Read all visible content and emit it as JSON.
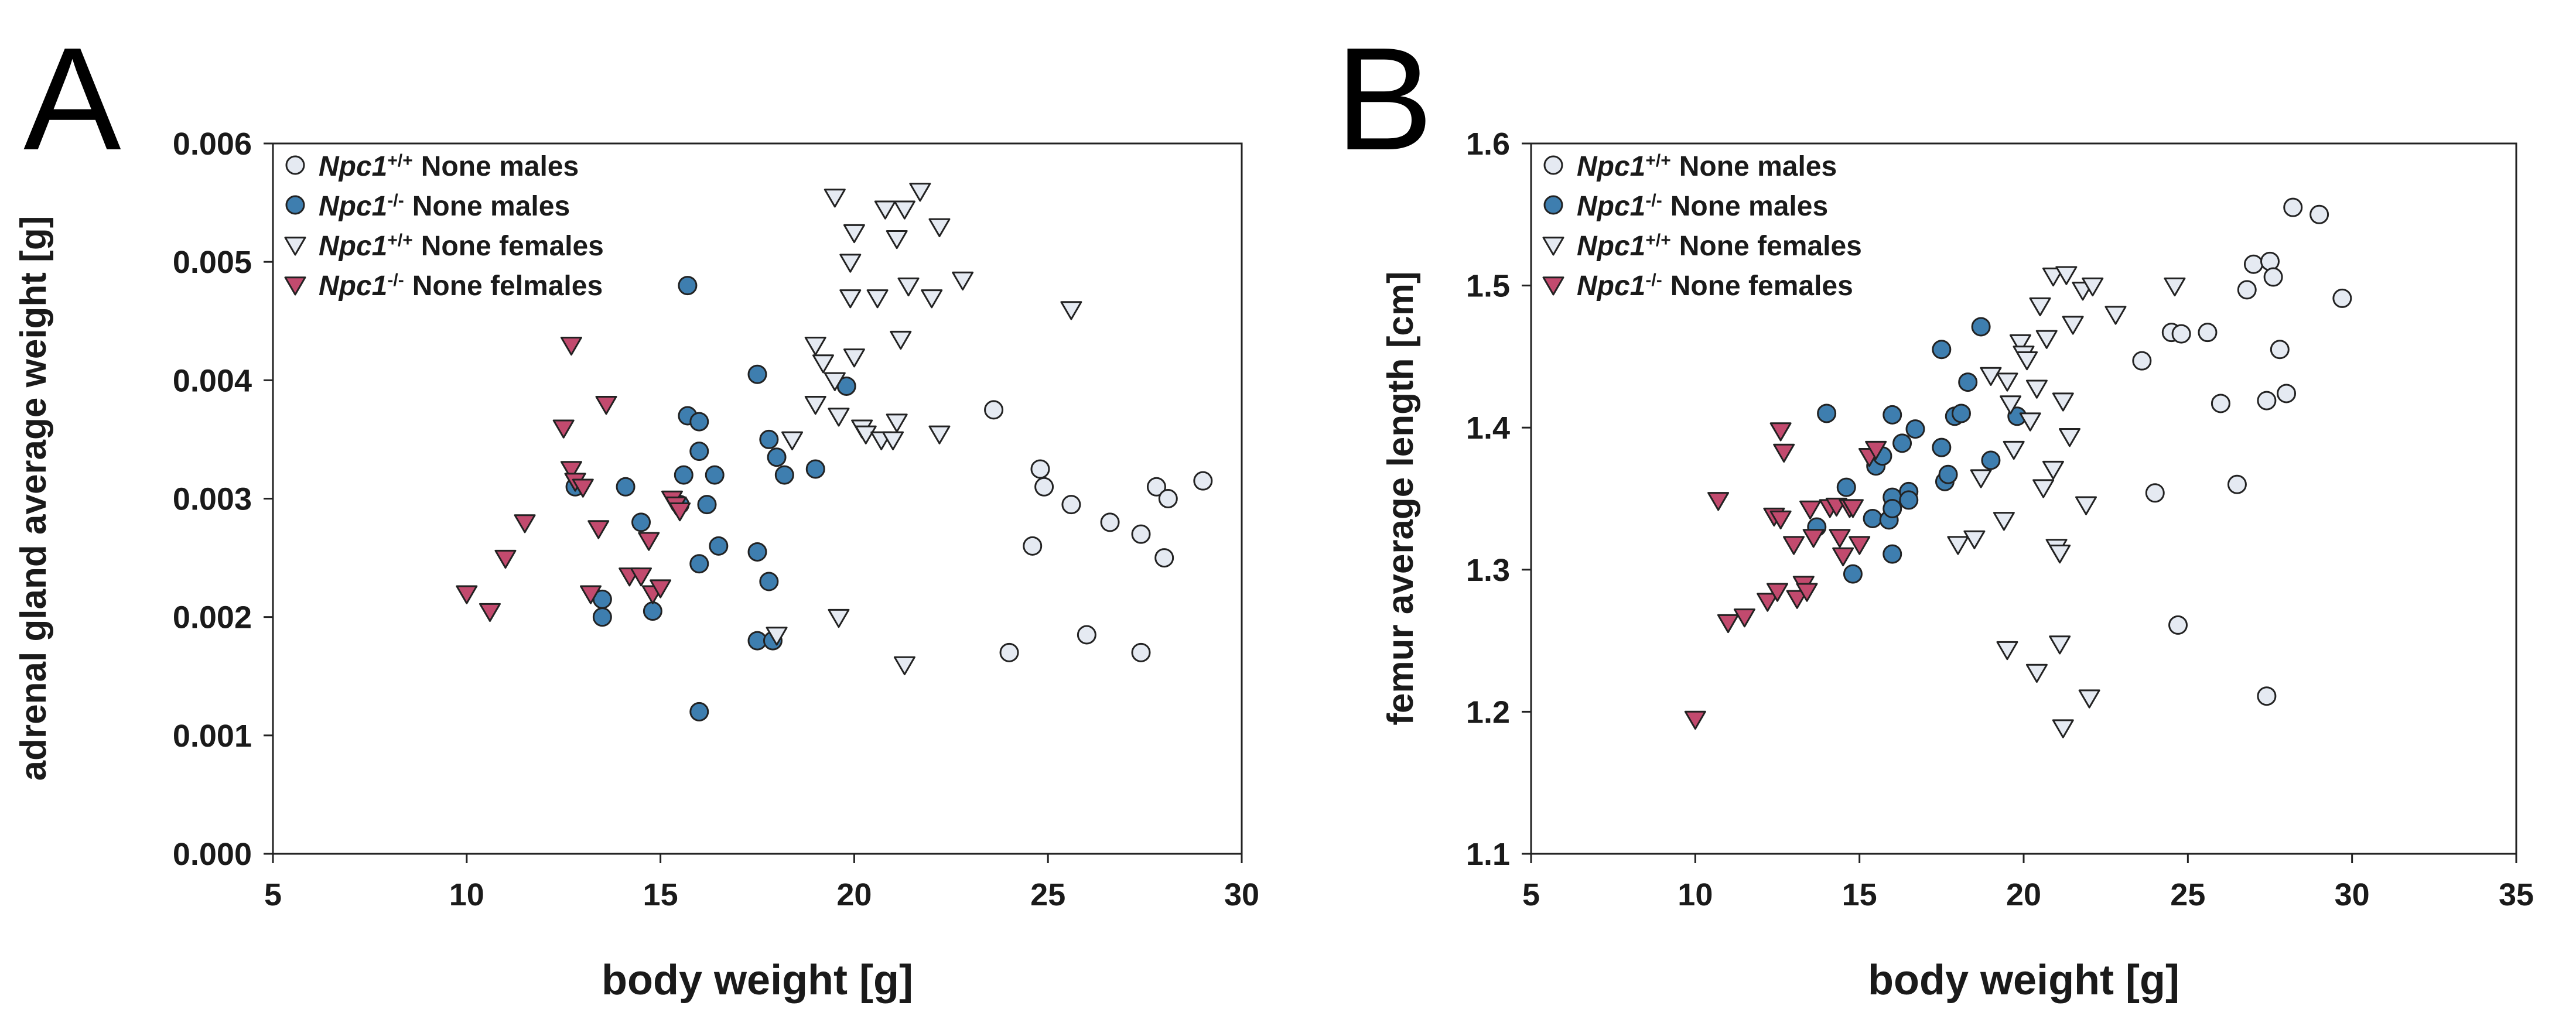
{
  "colors": {
    "wt": "#e5eaf2",
    "ko": "#3e7eaf",
    "ko_female": "#c24a6e",
    "stroke": "#222222"
  },
  "chart_data": [
    {
      "type": "scatter",
      "panel": "A",
      "xlabel": "body weight [g]",
      "ylabel": "adrenal gland average weight  [g]",
      "xlim": [
        5,
        30
      ],
      "ylim": [
        0,
        0.006
      ],
      "xticks": [
        5,
        10,
        15,
        20,
        25,
        30
      ],
      "yticks": [
        0.0,
        0.001,
        0.002,
        0.003,
        0.004,
        0.005,
        0.006
      ],
      "ytick_labels": [
        "0.000",
        "0.001",
        "0.002",
        "0.003",
        "0.004",
        "0.005",
        "0.006"
      ],
      "legend_position": "top-left",
      "series": [
        {
          "gene": "Npc1",
          "sup": "+/+",
          "name": "None males",
          "marker": "circle",
          "color": "wt",
          "points": [
            [
              23.6,
              0.00375
            ],
            [
              24.8,
              0.00325
            ],
            [
              24.9,
              0.0031
            ],
            [
              25.6,
              0.00295
            ],
            [
              26.6,
              0.0028
            ],
            [
              27.4,
              0.0027
            ],
            [
              27.8,
              0.0031
            ],
            [
              28.1,
              0.003
            ],
            [
              29.0,
              0.00315
            ],
            [
              24.6,
              0.0026
            ],
            [
              28.0,
              0.0025
            ],
            [
              24.0,
              0.0017
            ],
            [
              26.0,
              0.00185
            ],
            [
              27.4,
              0.0017
            ]
          ]
        },
        {
          "gene": "Npc1",
          "sup": "-/-",
          "name": "None males",
          "marker": "circle",
          "color": "ko",
          "points": [
            [
              12.8,
              0.0031
            ],
            [
              13.5,
              0.00215
            ],
            [
              13.5,
              0.002
            ],
            [
              14.1,
              0.0031
            ],
            [
              14.5,
              0.0028
            ],
            [
              14.8,
              0.00205
            ],
            [
              15.5,
              0.00295
            ],
            [
              15.6,
              0.0032
            ],
            [
              15.7,
              0.0037
            ],
            [
              15.7,
              0.0048
            ],
            [
              16.0,
              0.00365
            ],
            [
              16.0,
              0.0034
            ],
            [
              16.0,
              0.00245
            ],
            [
              16.0,
              0.0012
            ],
            [
              16.2,
              0.00295
            ],
            [
              16.4,
              0.0032
            ],
            [
              16.5,
              0.0026
            ],
            [
              17.5,
              0.00405
            ],
            [
              17.5,
              0.00255
            ],
            [
              17.5,
              0.0018
            ],
            [
              17.8,
              0.0035
            ],
            [
              17.8,
              0.0023
            ],
            [
              17.9,
              0.0018
            ],
            [
              18.0,
              0.00335
            ],
            [
              18.2,
              0.0032
            ],
            [
              19.0,
              0.00325
            ],
            [
              19.8,
              0.00395
            ]
          ]
        },
        {
          "gene": "Npc1",
          "sup": "+/+",
          "name": "None females",
          "marker": "triangle-down",
          "color": "wt",
          "points": [
            [
              18.0,
              0.00185
            ],
            [
              18.4,
              0.0035
            ],
            [
              19.0,
              0.0043
            ],
            [
              19.0,
              0.0038
            ],
            [
              19.2,
              0.00415
            ],
            [
              19.5,
              0.004
            ],
            [
              19.5,
              0.00555
            ],
            [
              19.6,
              0.002
            ],
            [
              19.6,
              0.0037
            ],
            [
              19.9,
              0.0047
            ],
            [
              19.9,
              0.005
            ],
            [
              20.0,
              0.0042
            ],
            [
              20.0,
              0.00525
            ],
            [
              20.2,
              0.0036
            ],
            [
              20.3,
              0.00355
            ],
            [
              20.6,
              0.0047
            ],
            [
              20.7,
              0.0035
            ],
            [
              20.8,
              0.00545
            ],
            [
              21.0,
              0.0035
            ],
            [
              21.1,
              0.00365
            ],
            [
              21.1,
              0.0052
            ],
            [
              21.2,
              0.00435
            ],
            [
              21.3,
              0.00545
            ],
            [
              21.3,
              0.0016
            ],
            [
              21.4,
              0.0048
            ],
            [
              21.7,
              0.0056
            ],
            [
              22.0,
              0.0047
            ],
            [
              22.2,
              0.00355
            ],
            [
              22.2,
              0.0053
            ],
            [
              22.8,
              0.00485
            ],
            [
              25.6,
              0.0046
            ]
          ]
        },
        {
          "gene": "Npc1",
          "sup": "-/-",
          "name": "None felmales",
          "marker": "triangle-down",
          "color": "ko_female",
          "points": [
            [
              10.0,
              0.0022
            ],
            [
              10.6,
              0.00205
            ],
            [
              11.0,
              0.0025
            ],
            [
              11.5,
              0.0028
            ],
            [
              12.5,
              0.0036
            ],
            [
              12.7,
              0.0043
            ],
            [
              12.7,
              0.00325
            ],
            [
              12.8,
              0.00315
            ],
            [
              13.0,
              0.0031
            ],
            [
              13.2,
              0.0022
            ],
            [
              13.4,
              0.00275
            ],
            [
              13.6,
              0.0038
            ],
            [
              14.2,
              0.00235
            ],
            [
              14.5,
              0.00235
            ],
            [
              14.7,
              0.00265
            ],
            [
              14.8,
              0.0022
            ],
            [
              15.0,
              0.00225
            ],
            [
              15.3,
              0.003
            ],
            [
              15.4,
              0.00295
            ],
            [
              15.5,
              0.0029
            ]
          ]
        }
      ]
    },
    {
      "type": "scatter",
      "panel": "B",
      "xlabel": "body weight [g]",
      "ylabel": "femur average length [cm]",
      "xlim": [
        5,
        35
      ],
      "ylim": [
        1.1,
        1.6
      ],
      "xticks": [
        5,
        10,
        15,
        20,
        25,
        30,
        35
      ],
      "yticks": [
        1.1,
        1.2,
        1.3,
        1.4,
        1.5,
        1.6
      ],
      "ytick_labels": [
        "1.1",
        "1.2",
        "1.3",
        "1.4",
        "1.5",
        "1.6"
      ],
      "legend_position": "top-left",
      "series": [
        {
          "gene": "Npc1",
          "sup": "+/+",
          "name": "None males",
          "marker": "circle",
          "color": "wt",
          "points": [
            [
              23.6,
              1.447
            ],
            [
              24.0,
              1.354
            ],
            [
              24.5,
              1.467
            ],
            [
              24.8,
              1.466
            ],
            [
              25.6,
              1.467
            ],
            [
              26.0,
              1.417
            ],
            [
              26.5,
              1.36
            ],
            [
              26.8,
              1.497
            ],
            [
              27.0,
              1.515
            ],
            [
              27.5,
              1.517
            ],
            [
              27.6,
              1.506
            ],
            [
              27.4,
              1.419
            ],
            [
              27.8,
              1.455
            ],
            [
              28.0,
              1.424
            ],
            [
              28.2,
              1.555
            ],
            [
              29.0,
              1.55
            ],
            [
              29.7,
              1.491
            ],
            [
              24.7,
              1.261
            ],
            [
              27.4,
              1.211
            ]
          ]
        },
        {
          "gene": "Npc1",
          "sup": "-/-",
          "name": "None males",
          "marker": "circle",
          "color": "ko",
          "points": [
            [
              13.7,
              1.33
            ],
            [
              14.0,
              1.41
            ],
            [
              14.6,
              1.358
            ],
            [
              14.8,
              1.297
            ],
            [
              15.4,
              1.336
            ],
            [
              15.5,
              1.373
            ],
            [
              15.7,
              1.38
            ],
            [
              15.9,
              1.335
            ],
            [
              16.0,
              1.409
            ],
            [
              16.0,
              1.351
            ],
            [
              16.0,
              1.343
            ],
            [
              16.0,
              1.311
            ],
            [
              16.3,
              1.389
            ],
            [
              16.5,
              1.355
            ],
            [
              16.5,
              1.349
            ],
            [
              16.7,
              1.399
            ],
            [
              17.5,
              1.455
            ],
            [
              17.5,
              1.386
            ],
            [
              17.6,
              1.362
            ],
            [
              17.7,
              1.367
            ],
            [
              17.9,
              1.408
            ],
            [
              18.1,
              1.41
            ],
            [
              18.3,
              1.432
            ],
            [
              18.7,
              1.471
            ],
            [
              19.0,
              1.377
            ],
            [
              19.8,
              1.408
            ]
          ]
        },
        {
          "gene": "Npc1",
          "sup": "+/+",
          "name": "None females",
          "marker": "triangle-down",
          "color": "wt",
          "points": [
            [
              18.0,
              1.318
            ],
            [
              18.5,
              1.322
            ],
            [
              18.7,
              1.365
            ],
            [
              19.0,
              1.437
            ],
            [
              19.4,
              1.335
            ],
            [
              19.5,
              1.433
            ],
            [
              19.5,
              1.244
            ],
            [
              19.6,
              1.417
            ],
            [
              19.7,
              1.385
            ],
            [
              19.9,
              1.46
            ],
            [
              20.0,
              1.452
            ],
            [
              20.1,
              1.448
            ],
            [
              20.2,
              1.405
            ],
            [
              20.4,
              1.428
            ],
            [
              20.4,
              1.228
            ],
            [
              20.5,
              1.486
            ],
            [
              20.6,
              1.358
            ],
            [
              20.7,
              1.463
            ],
            [
              20.9,
              1.371
            ],
            [
              20.9,
              1.507
            ],
            [
              21.0,
              1.316
            ],
            [
              21.1,
              1.312
            ],
            [
              21.1,
              1.248
            ],
            [
              21.2,
              1.419
            ],
            [
              21.2,
              1.189
            ],
            [
              21.3,
              1.508
            ],
            [
              21.4,
              1.394
            ],
            [
              21.5,
              1.473
            ],
            [
              21.8,
              1.497
            ],
            [
              21.9,
              1.346
            ],
            [
              22.0,
              1.21
            ],
            [
              22.1,
              1.5
            ],
            [
              22.8,
              1.48
            ],
            [
              24.6,
              1.5
            ]
          ]
        },
        {
          "gene": "Npc1",
          "sup": "-/-",
          "name": "None females",
          "marker": "triangle-down",
          "color": "ko_female",
          "points": [
            [
              10.0,
              1.195
            ],
            [
              10.7,
              1.349
            ],
            [
              11.0,
              1.263
            ],
            [
              11.5,
              1.267
            ],
            [
              12.2,
              1.278
            ],
            [
              12.4,
              1.338
            ],
            [
              12.5,
              1.285
            ],
            [
              12.6,
              1.398
            ],
            [
              12.6,
              1.336
            ],
            [
              12.7,
              1.383
            ],
            [
              13.0,
              1.318
            ],
            [
              13.1,
              1.28
            ],
            [
              13.3,
              1.29
            ],
            [
              13.4,
              1.285
            ],
            [
              13.5,
              1.343
            ],
            [
              13.6,
              1.323
            ],
            [
              14.1,
              1.344
            ],
            [
              14.3,
              1.345
            ],
            [
              14.4,
              1.323
            ],
            [
              14.5,
              1.31
            ],
            [
              14.7,
              1.344
            ],
            [
              14.8,
              1.344
            ],
            [
              15.0,
              1.318
            ],
            [
              15.3,
              1.38
            ],
            [
              15.5,
              1.385
            ]
          ]
        }
      ]
    }
  ]
}
